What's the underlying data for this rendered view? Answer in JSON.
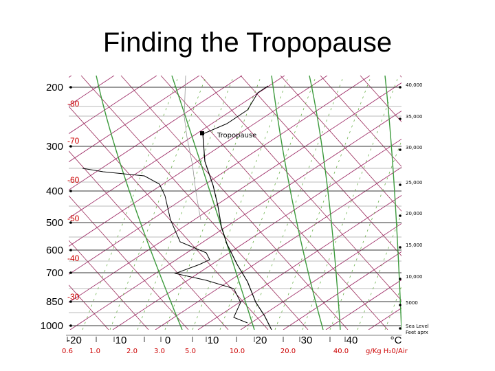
{
  "slide": {
    "title": "Finding the Tropopause"
  },
  "diagram": {
    "pressure_levels": [
      {
        "label": "200",
        "value": 200
      },
      {
        "label": "300",
        "value": 300
      },
      {
        "label": "400",
        "value": 400
      },
      {
        "label": "500",
        "value": 500
      },
      {
        "label": "600",
        "value": 600
      },
      {
        "label": "700",
        "value": 700
      },
      {
        "label": "850",
        "value": 850
      },
      {
        "label": "1000",
        "value": 1000
      }
    ],
    "altitude_labels": [
      "40,000",
      "35,000",
      "30,000",
      "25,000",
      "20,000",
      "15,000",
      "10,000",
      "5000",
      "Sea Level",
      "Feet aprx"
    ],
    "red_temperature_labels": [
      "-80",
      "-70",
      "-60",
      "-50",
      "-40",
      "-30"
    ],
    "temperature_axis": [
      "-20",
      "10",
      "0",
      "10",
      "20",
      "30",
      "40"
    ],
    "temperature_unit": "°C",
    "mixing_ratio_axis": [
      "0.6",
      "1.0",
      "2.0",
      "3.0",
      "5.0",
      "10.0",
      "20.0",
      "40.0"
    ],
    "mixing_ratio_unit": "g/Kg H₂0/Air",
    "annotation": "Tropopause",
    "colors": {
      "isotherm": "#a0306a",
      "dry_adiabat": "#9a2a5a",
      "moist_adiabat": "#3c9a3c",
      "mixing_ratio": "#6ab04a",
      "profile": "#000000",
      "labels_red": "#cc0000"
    }
  }
}
